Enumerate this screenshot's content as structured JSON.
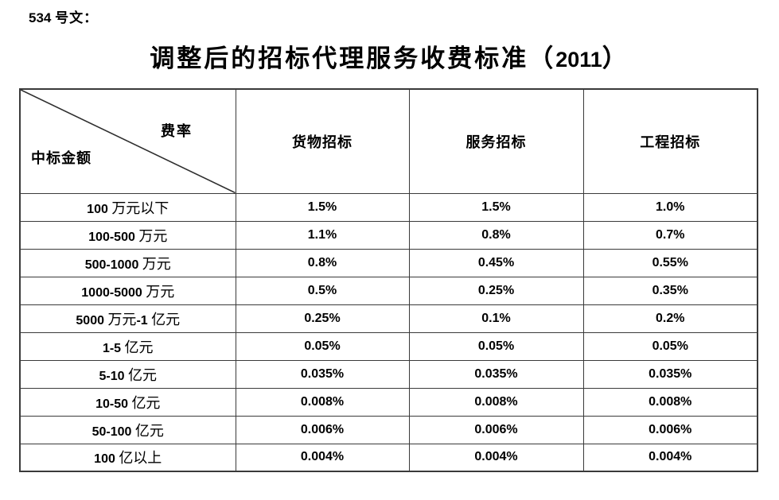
{
  "page": {
    "doc_number": "534 号文：",
    "title": "调整后的招标代理服务收费标准（2011）"
  },
  "table": {
    "corner": {
      "top_right": "费率",
      "bottom_left": "中标金额"
    },
    "columns": [
      "货物招标",
      "服务招标",
      "工程招标"
    ],
    "rows": [
      {
        "label": "100 万元以下",
        "values": [
          "1.5%",
          "1.5%",
          "1.0%"
        ]
      },
      {
        "label": "100-500 万元",
        "values": [
          "1.1%",
          "0.8%",
          "0.7%"
        ]
      },
      {
        "label": "500-1000 万元",
        "values": [
          "0.8%",
          "0.45%",
          "0.55%"
        ]
      },
      {
        "label": "1000-5000 万元",
        "values": [
          "0.5%",
          "0.25%",
          "0.35%"
        ]
      },
      {
        "label": "5000 万元-1 亿元",
        "values": [
          "0.25%",
          "0.1%",
          "0.2%"
        ]
      },
      {
        "label": "1-5 亿元",
        "values": [
          "0.05%",
          "0.05%",
          "0.05%"
        ]
      },
      {
        "label": "5-10 亿元",
        "values": [
          "0.035%",
          "0.035%",
          "0.035%"
        ]
      },
      {
        "label": "10-50 亿元",
        "values": [
          "0.008%",
          "0.008%",
          "0.008%"
        ]
      },
      {
        "label": "50-100 亿元",
        "values": [
          "0.006%",
          "0.006%",
          "0.006%"
        ]
      },
      {
        "label": "100 亿以上",
        "values": [
          "0.004%",
          "0.004%",
          "0.004%"
        ]
      }
    ]
  },
  "colors": {
    "text": "#000000",
    "border": "#3a3a3a",
    "background": "#ffffff"
  }
}
